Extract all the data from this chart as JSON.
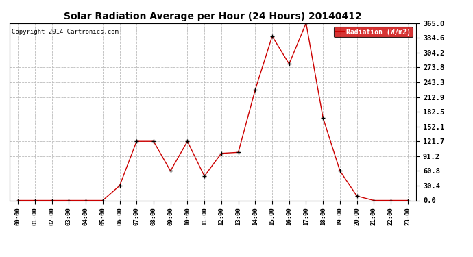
{
  "title": "Solar Radiation Average per Hour (24 Hours) 20140412",
  "copyright": "Copyright 2014 Cartronics.com",
  "line_color": "#cc0000",
  "marker_color": "#000000",
  "background_color": "#ffffff",
  "grid_color": "#bbbbbb",
  "hours": [
    0,
    1,
    2,
    3,
    4,
    5,
    6,
    7,
    8,
    9,
    10,
    11,
    12,
    13,
    14,
    15,
    16,
    17,
    18,
    19,
    20,
    21,
    22,
    23
  ],
  "values": [
    0.0,
    0.0,
    0.0,
    0.0,
    0.0,
    0.0,
    30.4,
    121.7,
    121.7,
    60.8,
    121.7,
    50.0,
    97.0,
    99.0,
    228.0,
    338.0,
    281.0,
    365.0,
    170.0,
    60.8,
    9.0,
    0.0,
    0.0,
    0.0
  ],
  "yticks": [
    0.0,
    30.4,
    60.8,
    91.2,
    121.7,
    152.1,
    182.5,
    212.9,
    243.3,
    273.8,
    304.2,
    334.6,
    365.0
  ],
  "ymax": 365.0,
  "ymin": 0.0,
  "legend_bg": "#cc0000",
  "legend_text_color": "#ffffff",
  "legend_label": "Radiation (W/m2)"
}
